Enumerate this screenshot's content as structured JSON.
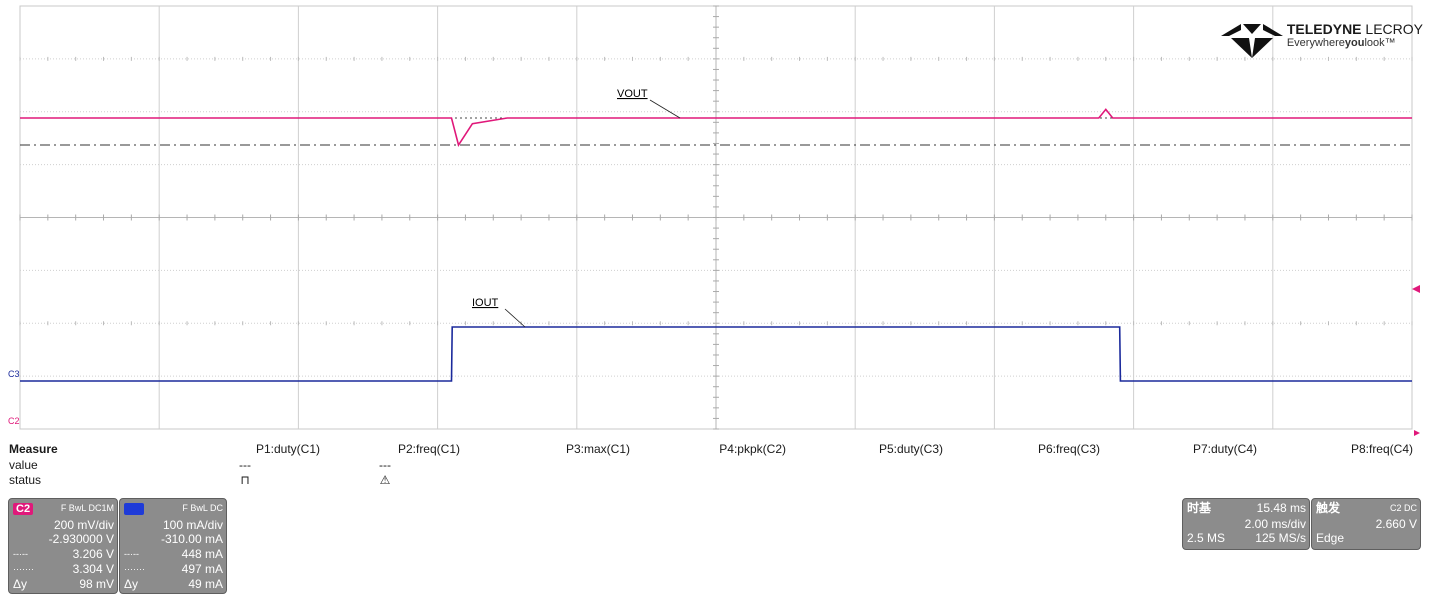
{
  "logo": {
    "brand_bold": "TELEDYNE",
    "brand_light": "LECROY",
    "tagline_a": "Everywhere",
    "tagline_b": "you",
    "tagline_c": "look"
  },
  "chart_data": {
    "type": "line",
    "grid": {
      "x_divisions": 10,
      "y_divisions": 8,
      "on": true
    },
    "series": [
      {
        "name": "VOUT",
        "channel": "C2",
        "color": "#e0187a",
        "units": "V",
        "x": [
          0,
          0.62,
          0.63,
          0.65,
          0.7,
          1.0,
          1.55,
          1.56,
          1.57,
          1.6,
          1.65,
          2.0
        ],
        "y": [
          3.3,
          3.3,
          3.206,
          3.28,
          3.3,
          3.3,
          3.3,
          3.33,
          3.3,
          3.3,
          3.3,
          3.3
        ]
      },
      {
        "name": "IOUT",
        "channel": "C3",
        "color": "#1b2a9c",
        "units": "mA",
        "x": [
          0,
          0.62,
          0.621,
          1.2,
          1.58,
          1.581,
          2.0
        ],
        "y": [
          448,
          448,
          497,
          497,
          497,
          448,
          448
        ]
      }
    ],
    "annotations": [
      "VOUT",
      "IOUT"
    ],
    "channel_markers": [
      "C3",
      "C2"
    ]
  },
  "measure": {
    "title": "Measure",
    "row_value": "value",
    "row_status": "status",
    "params": [
      {
        "name": "P1:duty(C1)",
        "value": "---",
        "status": "⊓"
      },
      {
        "name": "P2:freq(C1)",
        "value": "---",
        "status": "⚠"
      },
      {
        "name": "P3:max(C1)",
        "value": "",
        "status": ""
      },
      {
        "name": "P4:pkpk(C2)",
        "value": "",
        "status": ""
      },
      {
        "name": "P5:duty(C3)",
        "value": "",
        "status": ""
      },
      {
        "name": "P6:freq(C3)",
        "value": "",
        "status": ""
      },
      {
        "name": "P7:duty(C4)",
        "value": "",
        "status": ""
      },
      {
        "name": "P8:freq(C4)",
        "value": "",
        "status": ""
      }
    ]
  },
  "channels": [
    {
      "tag": "C2",
      "tag_color": "#e0187a",
      "mode": "F  BwL  DC1M",
      "scale": "200 mV/div",
      "offset": "-2.930000 V",
      "cursor1_label": "--·--",
      "cursor1": "3.206 V",
      "cursor2_label": "·······",
      "cursor2": "3.304 V",
      "dy_label": "Δy",
      "dy": "98 mV"
    },
    {
      "tag": "C3",
      "tag_color": "#1f3bd8",
      "mode": "F  BwL  DC",
      "scale": "100 mA/div",
      "offset": "-310.00 mA",
      "cursor1_label": "--·--",
      "cursor1": "448 mA",
      "cursor2_label": "·······",
      "cursor2": "497 mA",
      "dy_label": "Δy",
      "dy": "49 mA"
    }
  ],
  "timebase": {
    "label": "时基",
    "delay": "15.48 ms",
    "scale": "2.00 ms/div",
    "samples": "2.5 MS",
    "rate": "125 MS/s"
  },
  "trigger": {
    "label": "触发",
    "source": "C2  DC",
    "level": "2.660 V",
    "type": "Edge"
  }
}
